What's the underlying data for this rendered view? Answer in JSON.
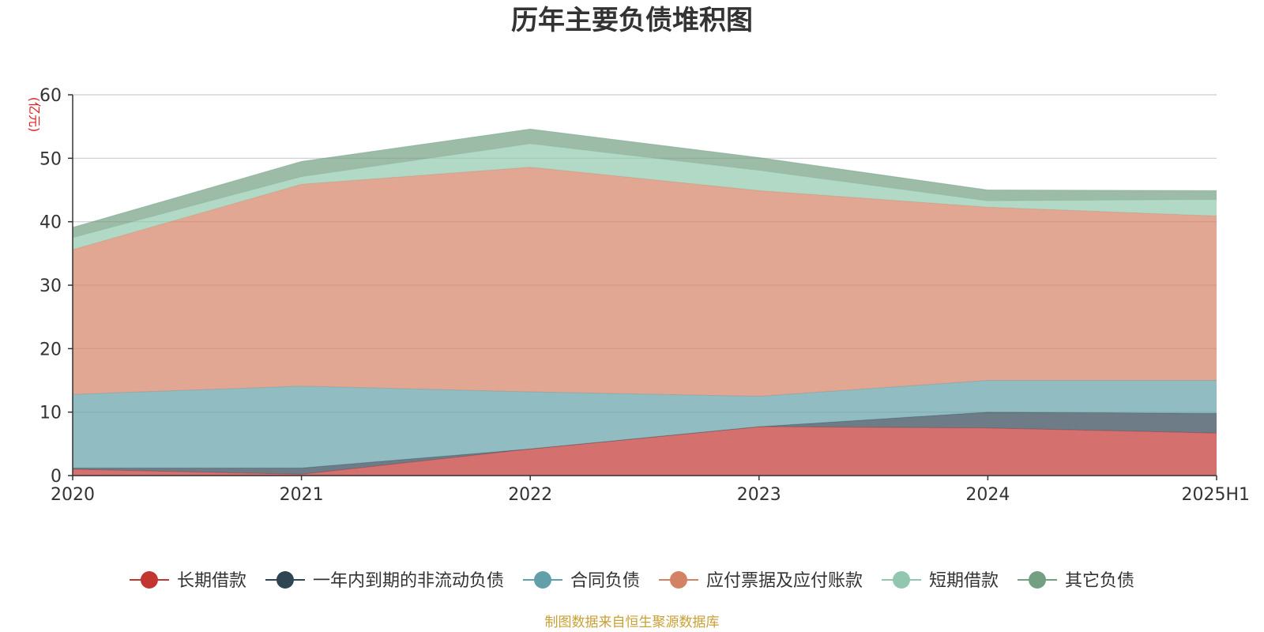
{
  "chart_data": {
    "type": "area",
    "stacked": true,
    "title": "历年主要负债堆积图",
    "unit": "(亿元)",
    "categories": [
      "2020",
      "2021",
      "2022",
      "2023",
      "2024",
      "2025H1"
    ],
    "ylim": [
      0,
      60
    ],
    "yticks": [
      0,
      10,
      20,
      30,
      40,
      50,
      60
    ],
    "grid": true,
    "legend_position": "bottom",
    "series": [
      {
        "name": "长期借款",
        "color": "#c23531",
        "values": [
          1.0,
          0.2,
          4.2,
          7.7,
          7.5,
          6.7
        ]
      },
      {
        "name": "一年内到期的非流动负债",
        "color": "#2f4554",
        "values": [
          0.2,
          1.0,
          0.0,
          0.0,
          2.5,
          3.1
        ]
      },
      {
        "name": "合同负债",
        "color": "#61a0a8",
        "values": [
          11.6,
          12.9,
          9.0,
          4.8,
          5.0,
          5.2
        ]
      },
      {
        "name": "应付票据及应付账款",
        "color": "#d48265",
        "values": [
          22.8,
          31.8,
          35.4,
          32.4,
          27.3,
          25.9
        ]
      },
      {
        "name": "短期借款",
        "color": "#91c7ae",
        "values": [
          1.9,
          1.2,
          3.7,
          3.2,
          1.0,
          2.6
        ]
      },
      {
        "name": "其它负债",
        "color": "#749f83",
        "values": [
          1.6,
          2.4,
          2.3,
          2.0,
          1.7,
          1.4
        ]
      }
    ]
  },
  "footer": {
    "source": "制图数据来自恒生聚源数据库"
  }
}
